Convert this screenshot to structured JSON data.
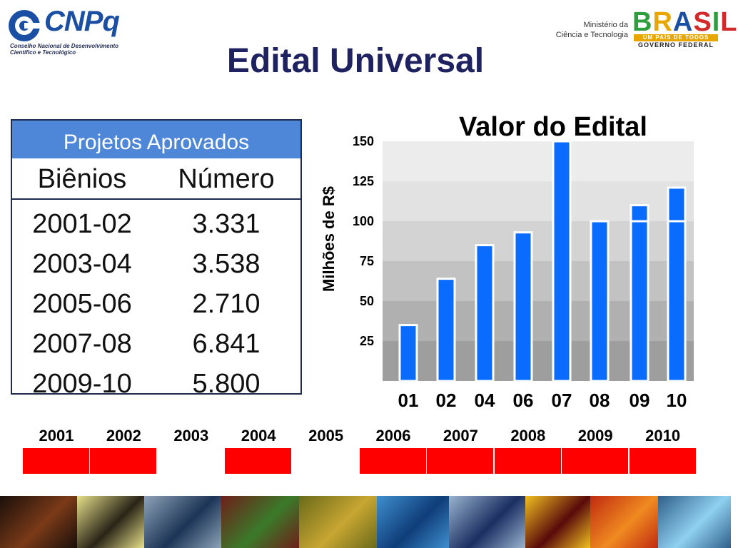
{
  "header": {
    "org_logo_text": "CNPq",
    "org_subtitle_line1": "Conselho Nacional de Desenvolvimento",
    "org_subtitle_line2": "Científico e Tecnológico",
    "ministry_line1": "Ministério da",
    "ministry_line2": "Ciência e Tecnologia",
    "brasil_word": "BRASIL",
    "brasil_tagline": "UM PAÍS DE TODOS",
    "brasil_government": "GOVERNO FEDERAL"
  },
  "page_title": "Edital Universal",
  "table": {
    "caption": "Projetos Aprovados",
    "headers": [
      "Biênios",
      "Número"
    ],
    "rows": [
      [
        "2001-02",
        "3.331"
      ],
      [
        "2003-04",
        "3.538"
      ],
      [
        "2005-06",
        "2.710"
      ],
      [
        "2007-08",
        "6.841"
      ],
      [
        "2009-10",
        "5.800"
      ]
    ]
  },
  "chart_data": {
    "type": "bar",
    "title": "Valor do Edital",
    "xlabel": "",
    "ylabel": "Milhões de R$",
    "categories": [
      "01",
      "02",
      "04",
      "06",
      "07",
      "08",
      "09",
      "10"
    ],
    "values": [
      35,
      64,
      85,
      93,
      150,
      100,
      110,
      121
    ],
    "segment_marks": {
      "09": 100,
      "10": 100
    },
    "yticks": [
      25,
      50,
      75,
      100,
      125,
      150
    ],
    "ylim": [
      0,
      150
    ],
    "grid": "horizontal shaded bands",
    "bar_color": "#0a6cff",
    "band_colors": [
      "#9e9e9e",
      "#b0b0b0",
      "#c2c2c2",
      "#d3d3d3",
      "#e2e2e2",
      "#ececec"
    ]
  },
  "timeline": {
    "years": [
      "2001",
      "2002",
      "2003",
      "2004",
      "2005",
      "2006",
      "2007",
      "2008",
      "2009",
      "2010"
    ],
    "highlighted": [
      true,
      true,
      false,
      true,
      false,
      true,
      true,
      true,
      true,
      true
    ],
    "highlight_color": "#ff0000"
  },
  "photo_strip": {
    "count": 10,
    "tones": [
      [
        "#1a0f0a",
        "#7a3a18"
      ],
      [
        "#e6e08a",
        "#2a2418"
      ],
      [
        "#8ea3b8",
        "#1c3556"
      ],
      [
        "#6e1f1a",
        "#3a7a2a"
      ],
      [
        "#6a6a1a",
        "#c8a632"
      ],
      [
        "#3f8fd0",
        "#0f3d78"
      ],
      [
        "#9ab4cf",
        "#1b2f62"
      ],
      [
        "#f0c020",
        "#5a0a0a"
      ],
      [
        "#c02a10",
        "#f08a20"
      ],
      [
        "#2f5f8a",
        "#8fd0f0"
      ]
    ]
  }
}
